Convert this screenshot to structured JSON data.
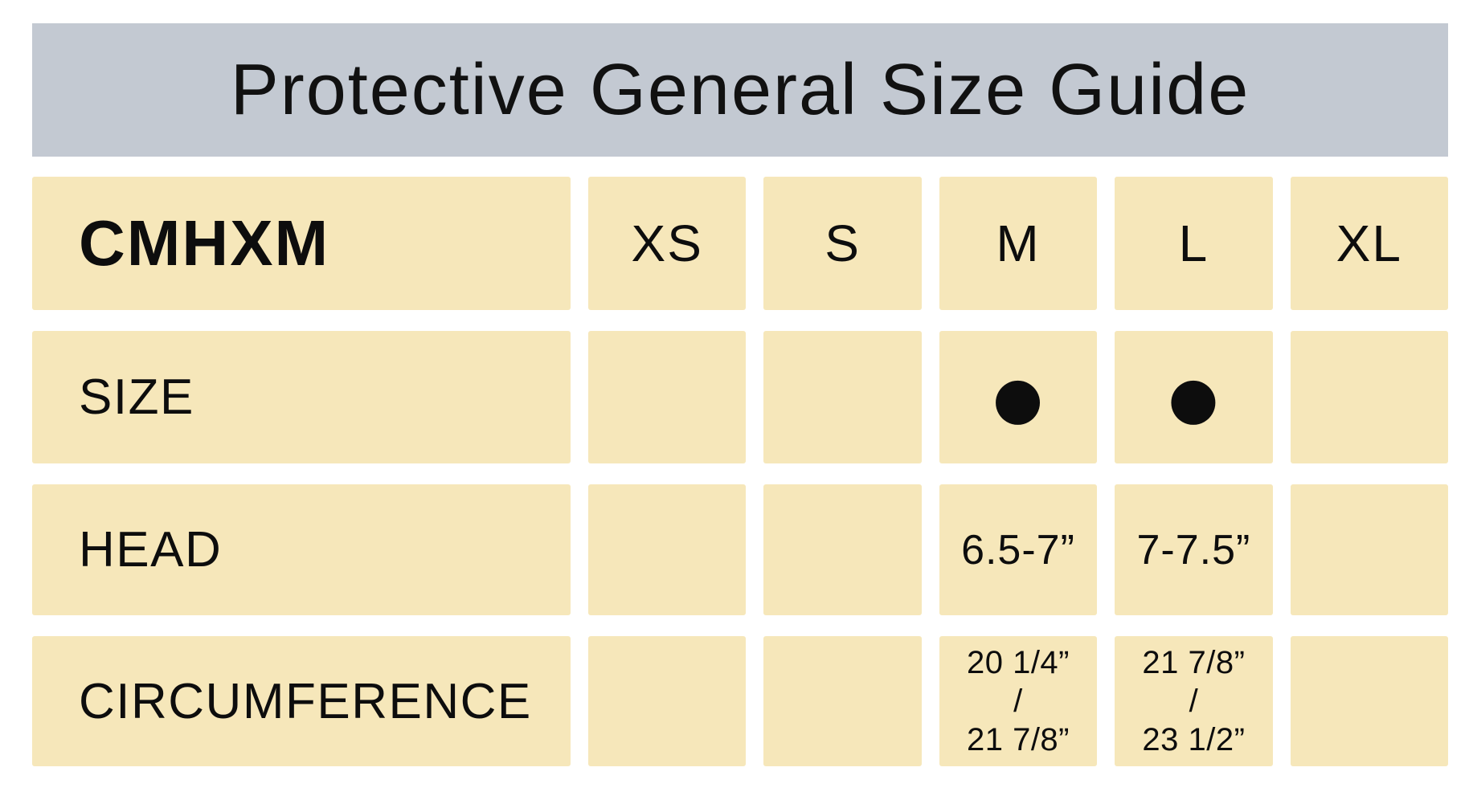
{
  "title": "Protective General Size Guide",
  "colors": {
    "banner_bg": "#c3c9d2",
    "cell_bg": "#f6e7ba",
    "text": "#0d0d0d",
    "page_bg": "#ffffff",
    "dot": "#000000"
  },
  "chart_data": {
    "type": "table",
    "title": "Protective General Size Guide",
    "product_code": "CMHXM",
    "size_columns": [
      "XS",
      "S",
      "M",
      "L",
      "XL"
    ],
    "rows": [
      {
        "label": "SIZE",
        "values": [
          "",
          "",
          "●",
          "●",
          ""
        ]
      },
      {
        "label": "HEAD",
        "values": [
          "",
          "",
          "6.5-7”",
          "7-7.5”",
          ""
        ]
      },
      {
        "label": "CIRCUMFERENCE",
        "values_multiline": [
          [
            "",
            "",
            ""
          ],
          [
            "",
            "",
            ""
          ],
          [
            "20 1/4”",
            "/",
            "21 7/8”"
          ],
          [
            "21 7/8”",
            "/",
            "23 1/2”"
          ],
          [
            "",
            "",
            ""
          ]
        ]
      }
    ]
  }
}
